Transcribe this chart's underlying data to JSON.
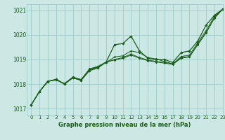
{
  "background_color": "#cce8e4",
  "grid_color": "#99cccc",
  "line_color": "#1a5c1a",
  "title": "Graphe pression niveau de la mer (hPa)",
  "xlim": [
    -0.5,
    23
  ],
  "ylim": [
    1016.75,
    1021.25
  ],
  "yticks": [
    1017,
    1018,
    1019,
    1020,
    1021
  ],
  "xticks": [
    0,
    1,
    2,
    3,
    4,
    5,
    6,
    7,
    8,
    9,
    10,
    11,
    12,
    13,
    14,
    15,
    16,
    17,
    18,
    19,
    20,
    21,
    22,
    23
  ],
  "series": [
    [
      1017.15,
      1017.7,
      1018.1,
      1018.2,
      1018.0,
      1018.25,
      1018.15,
      1018.55,
      1018.65,
      1018.9,
      1019.6,
      1019.65,
      1019.95,
      1019.35,
      1019.05,
      1019.0,
      1019.0,
      1018.88,
      1019.28,
      1019.35,
      1019.75,
      1020.4,
      1020.8,
      1021.05
    ],
    [
      1017.15,
      1017.7,
      1018.12,
      1018.18,
      1018.02,
      1018.28,
      1018.18,
      1018.58,
      1018.68,
      1018.88,
      1019.1,
      1019.15,
      1019.35,
      1019.28,
      1019.08,
      1019.02,
      1018.92,
      1018.82,
      1019.12,
      1019.18,
      1019.68,
      1020.18,
      1020.75,
      1021.05
    ],
    [
      1017.15,
      1017.7,
      1018.12,
      1018.18,
      1018.0,
      1018.28,
      1018.18,
      1018.6,
      1018.7,
      1018.88,
      1019.0,
      1019.08,
      1019.22,
      1019.08,
      1018.98,
      1018.92,
      1018.88,
      1018.82,
      1019.08,
      1019.12,
      1019.62,
      1020.1,
      1020.7,
      1021.05
    ],
    [
      1017.15,
      1017.7,
      1018.12,
      1018.16,
      1018.02,
      1018.28,
      1018.18,
      1018.62,
      1018.72,
      1018.9,
      1018.98,
      1019.05,
      1019.18,
      1019.05,
      1018.95,
      1018.9,
      1018.85,
      1018.8,
      1019.05,
      1019.1,
      1019.6,
      1020.08,
      1020.68,
      1021.05
    ]
  ]
}
